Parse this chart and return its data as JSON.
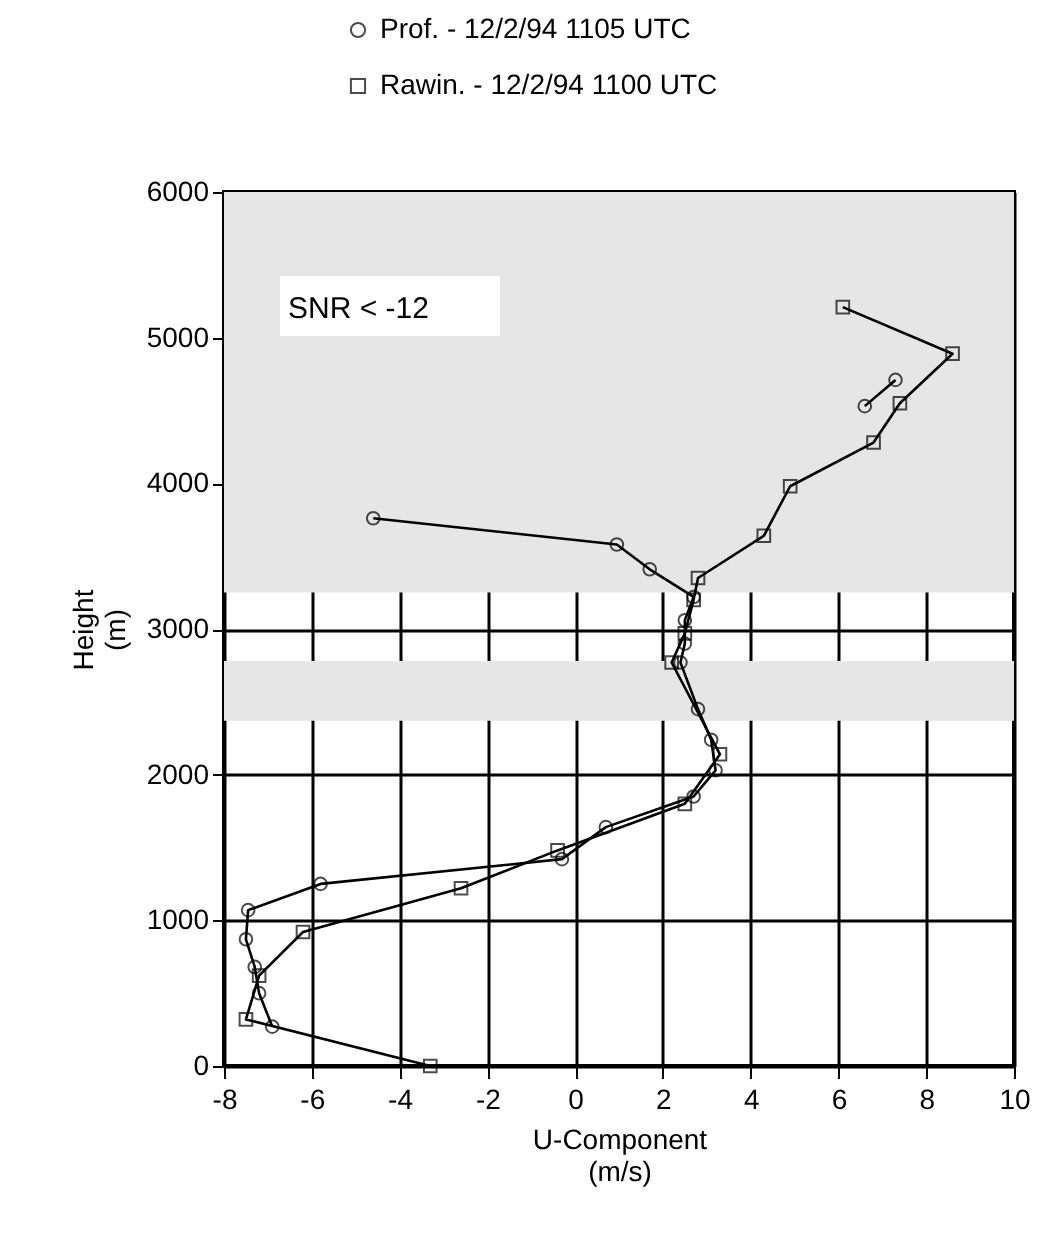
{
  "chart_data": {
    "type": "line",
    "xlabel": "U-Component\n(m/s)",
    "ylabel": "Height\n(m)",
    "series": [
      {
        "name": "Prof. - 12/2/94 1105 UTC",
        "color": "#000000",
        "marker": "circle",
        "x": [
          -6.9,
          -7.2,
          -7.3,
          -7.5,
          -7.45,
          -5.8,
          -0.3,
          0.7,
          2.7,
          3.2,
          3.1,
          2.8,
          2.4,
          2.5,
          2.5,
          2.7,
          1.7,
          0.95,
          -4.6,
          null,
          6.6,
          7.3
        ],
        "values": [
          270,
          500,
          680,
          870,
          1070,
          1250,
          1420,
          1640,
          1850,
          2030,
          2240,
          2450,
          2770,
          2900,
          3060,
          3220,
          3410,
          3580,
          3760,
          null,
          4530,
          4710
        ]
      },
      {
        "name": "Rawin. - 12/2/94 1100 UTC",
        "color": "#000000",
        "marker": "square",
        "x": [
          -3.3,
          -7.5,
          -7.2,
          -6.2,
          -2.6,
          -0.4,
          2.5,
          3.3,
          2.2,
          2.5,
          2.7,
          2.8,
          4.3,
          4.9,
          6.8,
          7.4,
          8.6,
          6.1
        ],
        "values": [
          0,
          320,
          620,
          920,
          1220,
          1480,
          1800,
          2140,
          2770,
          2970,
          3200,
          3350,
          3640,
          3980,
          4280,
          4550,
          4890,
          5210
        ]
      }
    ],
    "bands": [
      {
        "axis": "y",
        "from": 3250,
        "to": 6000,
        "color": "#e6e6e6",
        "label": "SNR < -12"
      },
      {
        "axis": "y",
        "from": 2370,
        "to": 2780,
        "color": "#e6e6e6"
      }
    ],
    "xlim": [
      -8,
      10
    ],
    "xticks": [
      -8,
      -6,
      -4,
      -2,
      0,
      2,
      4,
      6,
      8,
      10
    ],
    "ylim": [
      0,
      6000
    ],
    "yticks": [
      0,
      1000,
      2000,
      3000,
      4000,
      5000,
      6000
    ],
    "grid": true,
    "legend": "top",
    "line_style": "solid"
  }
}
